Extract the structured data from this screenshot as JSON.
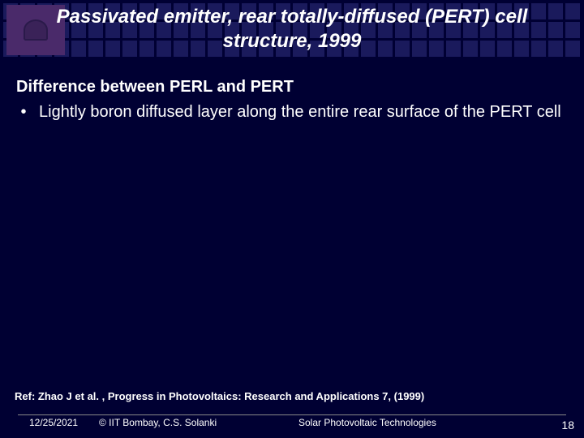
{
  "title": "Passivated emitter, rear totally-diffused (PERT) cell structure, 1999",
  "subheading": "Difference between PERL and PERT",
  "bullets": [
    "Lightly boron diffused layer along the entire rear surface of the PERT cell"
  ],
  "reference": "Ref: Zhao J et al. , Progress in Photovoltaics: Research and Applications 7, (1999)",
  "footer": {
    "date": "12/25/2021",
    "copyright": "© IIT Bombay, C.S. Solanki",
    "course": "Solar Photovoltaic Technologies",
    "page": "18"
  },
  "colors": {
    "background": "#000033",
    "grid_cell": "#1a1a5c",
    "logo_bg": "#4a2a6a",
    "text": "#ffffff",
    "rule": "#888888"
  }
}
